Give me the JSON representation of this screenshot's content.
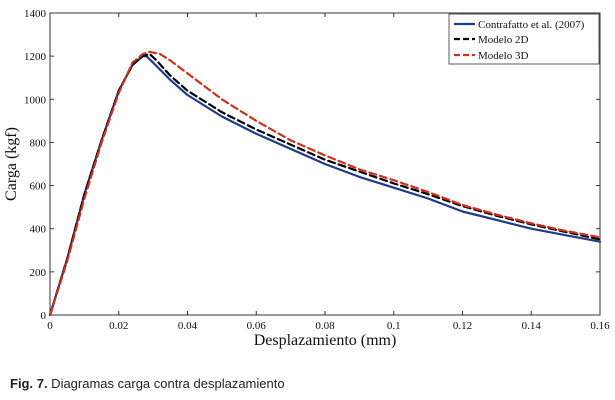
{
  "chart_data": {
    "type": "line",
    "xlabel": "Desplazamiento (mm)",
    "ylabel": "Carga (kgf)",
    "xlim": [
      0,
      0.16
    ],
    "ylim": [
      0,
      1400
    ],
    "x_ticks": [
      0,
      0.02,
      0.04,
      0.06,
      0.08,
      0.1,
      0.12,
      0.14,
      0.16
    ],
    "x_tick_labels": [
      "0",
      "0.02",
      "0.04",
      "0.06",
      "0.08",
      "0.1",
      "0.12",
      "0.14",
      "0.16"
    ],
    "y_ticks": [
      0,
      200,
      400,
      600,
      800,
      1000,
      1200,
      1400
    ],
    "y_tick_labels": [
      "0",
      "200",
      "400",
      "600",
      "800",
      "1000",
      "1200",
      "1400"
    ],
    "legend_position": "top-right",
    "series": [
      {
        "name": "Contrafatto et al. (2007)",
        "color": "#1f3a8a",
        "style": "solid",
        "x": [
          0,
          0.005,
          0.01,
          0.015,
          0.02,
          0.024,
          0.027,
          0.028,
          0.03,
          0.035,
          0.04,
          0.05,
          0.06,
          0.07,
          0.08,
          0.09,
          0.1,
          0.11,
          0.12,
          0.13,
          0.14,
          0.15,
          0.16
        ],
        "y": [
          0,
          260,
          560,
          810,
          1040,
          1160,
          1200,
          1200,
          1170,
          1090,
          1020,
          920,
          840,
          770,
          700,
          640,
          590,
          540,
          480,
          440,
          400,
          370,
          340
        ]
      },
      {
        "name": "Modelo 2D",
        "color": "#000000",
        "style": "dashed",
        "x": [
          0,
          0.005,
          0.01,
          0.015,
          0.02,
          0.024,
          0.027,
          0.029,
          0.031,
          0.035,
          0.04,
          0.05,
          0.06,
          0.07,
          0.08,
          0.09,
          0.1,
          0.11,
          0.12,
          0.13,
          0.14,
          0.15,
          0.16
        ],
        "y": [
          0,
          260,
          560,
          810,
          1040,
          1160,
          1200,
          1210,
          1180,
          1110,
          1040,
          940,
          860,
          790,
          720,
          665,
          610,
          560,
          505,
          460,
          420,
          385,
          350
        ]
      },
      {
        "name": "Modelo 3D",
        "color": "#d0301f",
        "style": "dashed",
        "x": [
          0,
          0.005,
          0.01,
          0.015,
          0.02,
          0.024,
          0.027,
          0.029,
          0.032,
          0.035,
          0.04,
          0.05,
          0.06,
          0.07,
          0.08,
          0.09,
          0.1,
          0.11,
          0.12,
          0.13,
          0.14,
          0.15,
          0.16
        ],
        "y": [
          0,
          250,
          540,
          800,
          1030,
          1170,
          1210,
          1220,
          1210,
          1180,
          1120,
          1000,
          900,
          810,
          740,
          675,
          625,
          570,
          510,
          465,
          425,
          390,
          360
        ]
      }
    ]
  },
  "caption": {
    "label": "Fig. 7.",
    "text": " Diagramas carga contra desplazamiento"
  }
}
